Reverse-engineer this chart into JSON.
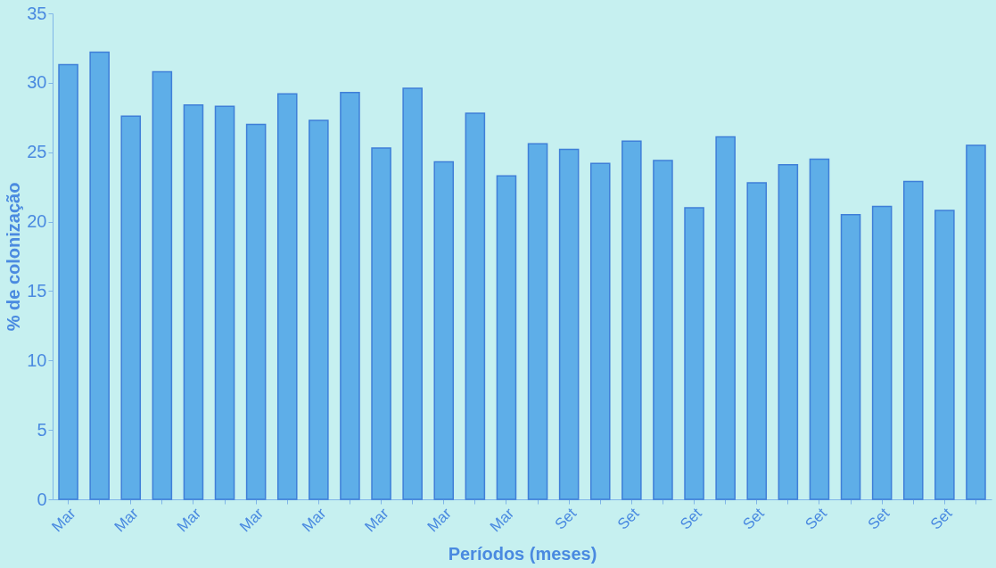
{
  "chart_data": {
    "type": "bar",
    "xlabel": "Períodos (meses)",
    "ylabel": "% de colonização",
    "categories": [
      "Mar",
      null,
      "Mar",
      null,
      "Mar",
      null,
      "Mar",
      null,
      "Mar",
      null,
      "Mar",
      null,
      "Mar",
      null,
      "Mar",
      null,
      "Set",
      null,
      "Set",
      null,
      "Set",
      null,
      "Set",
      null,
      "Set",
      null,
      "Set",
      null,
      "Set",
      null
    ],
    "values": [
      31.3,
      32.2,
      27.6,
      30.8,
      28.4,
      28.3,
      27.0,
      29.2,
      27.3,
      29.3,
      25.3,
      29.6,
      24.3,
      27.8,
      23.3,
      25.6,
      25.2,
      24.2,
      25.8,
      24.4,
      21.0,
      26.1,
      22.8,
      24.1,
      24.5,
      20.5,
      21.1,
      22.9,
      20.8,
      25.5
    ],
    "color": "#5eaee8",
    "ylim": [
      0,
      35
    ],
    "yticks": [
      0,
      5,
      10,
      15,
      20,
      25,
      30,
      35
    ],
    "grid": false
  }
}
